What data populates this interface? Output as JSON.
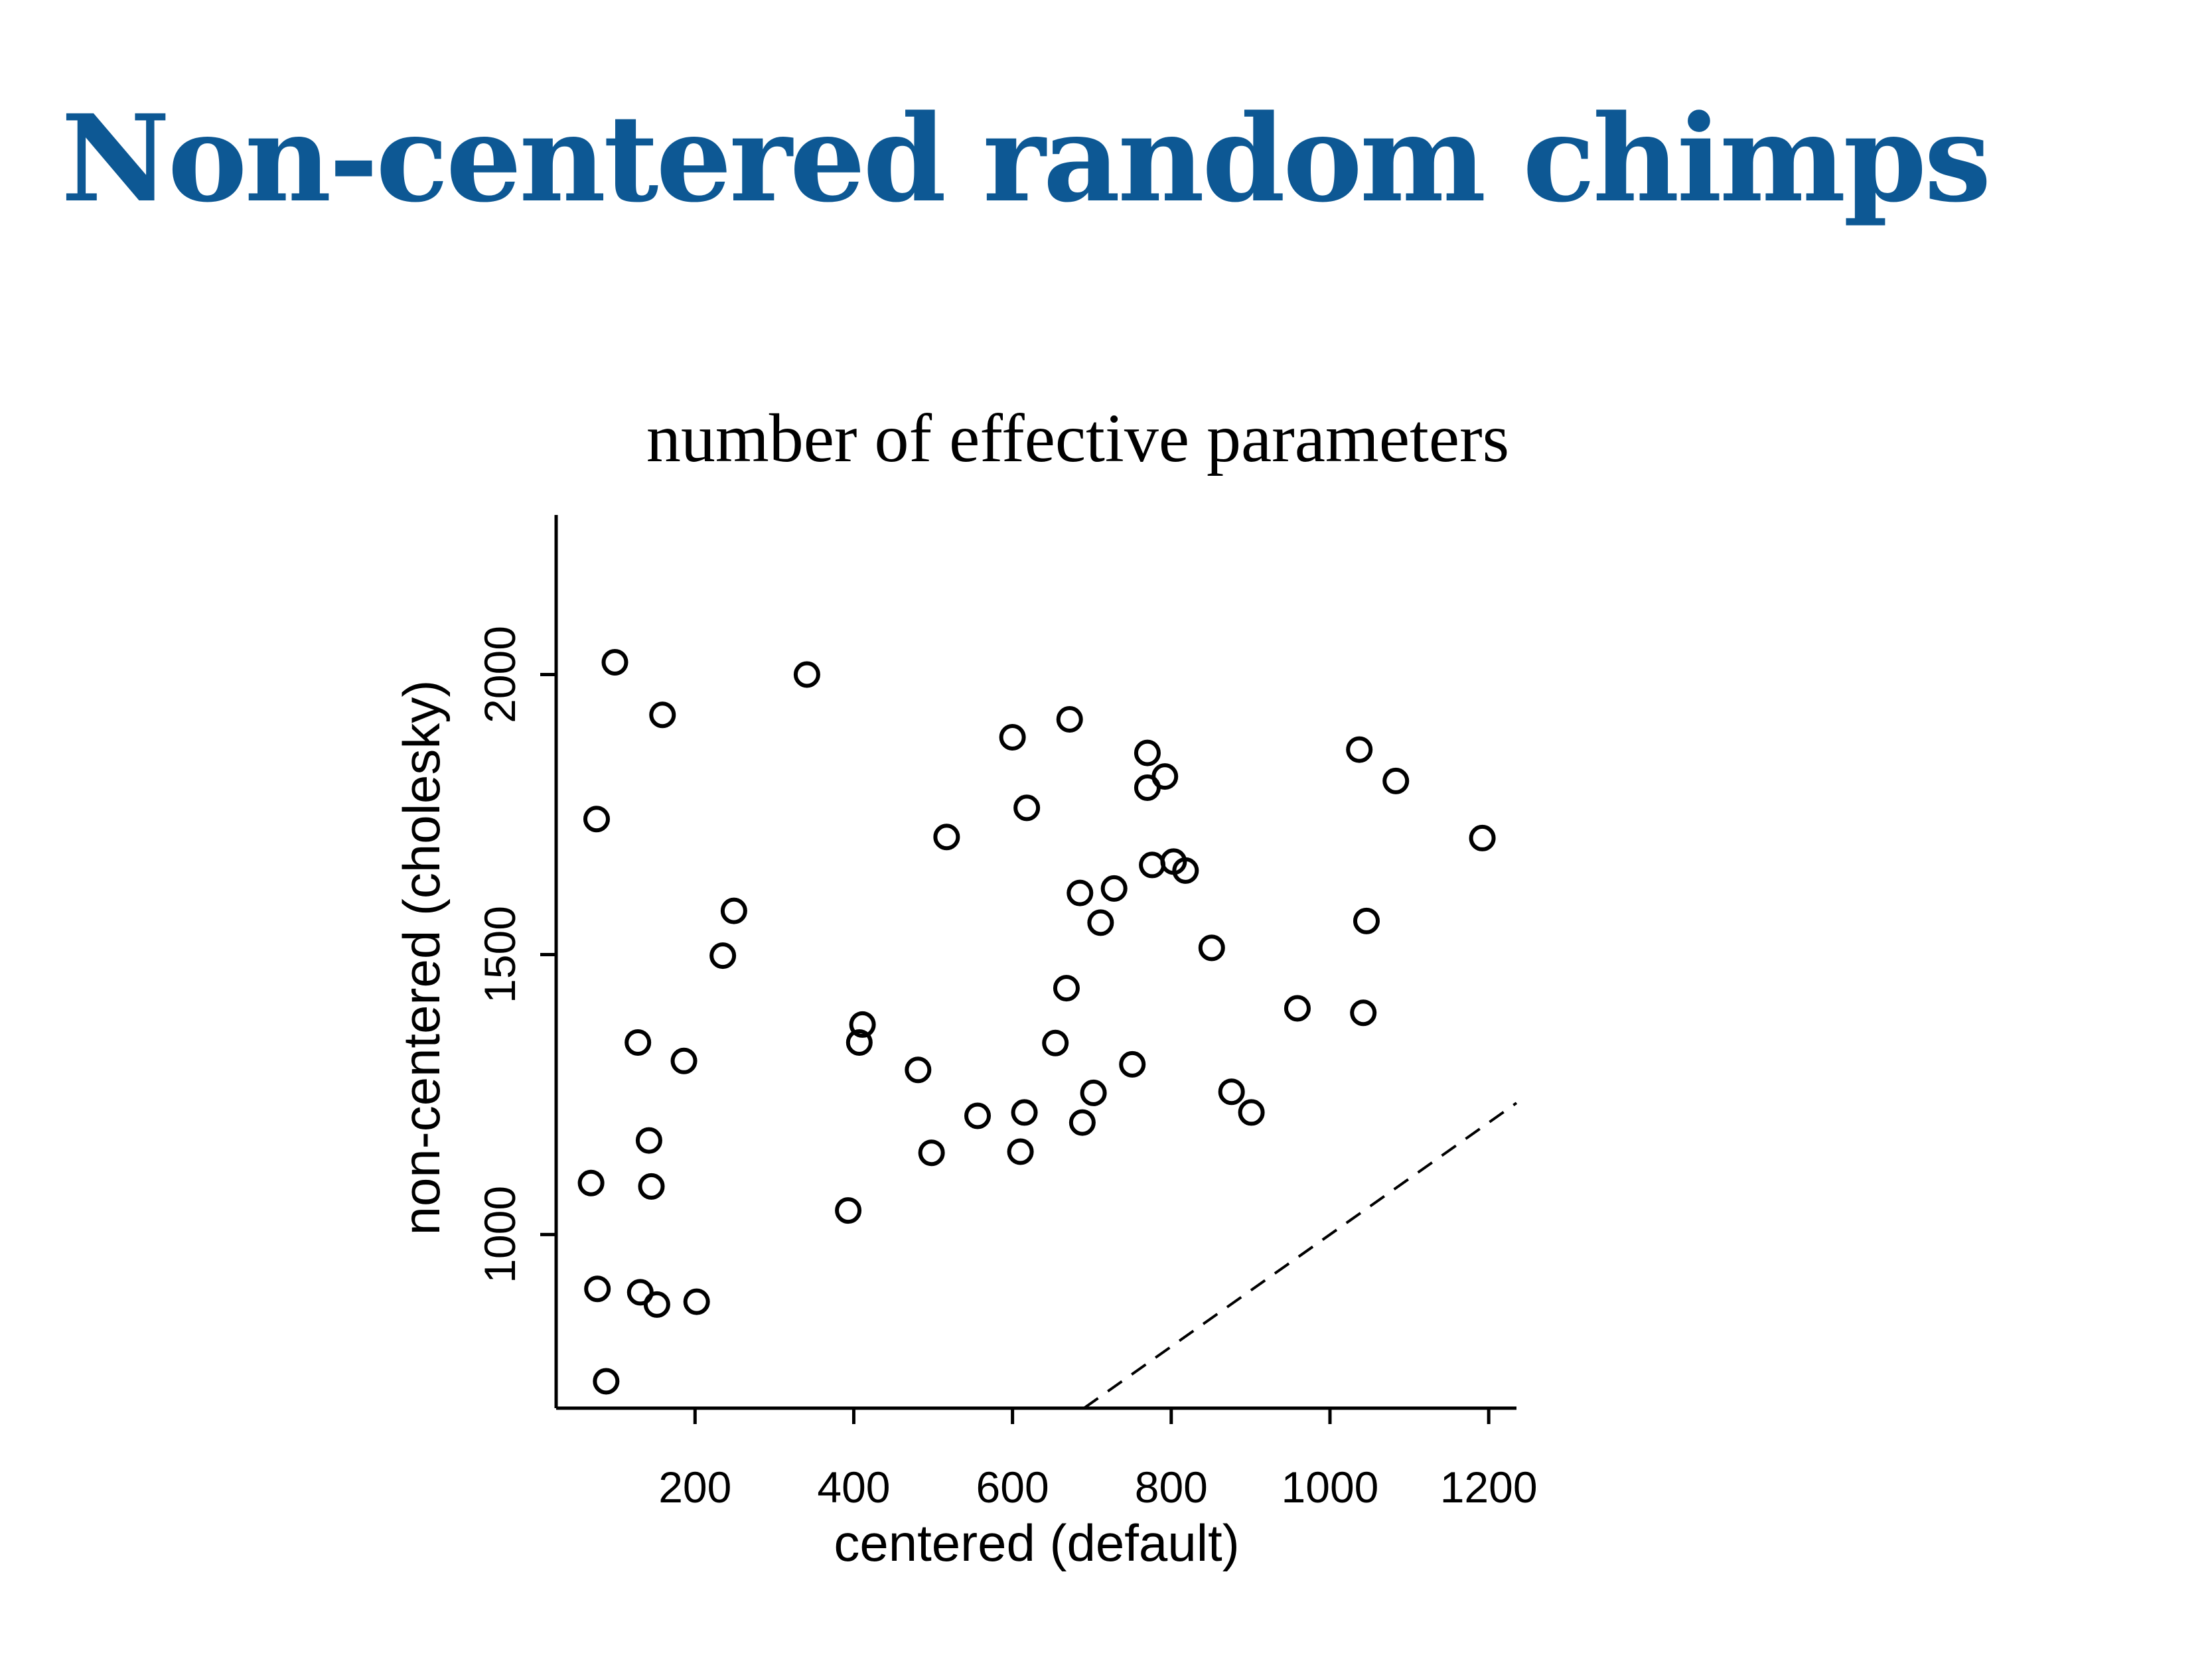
{
  "slide": {
    "title": "Non-centered random chimps"
  },
  "chart_data": {
    "type": "scatter",
    "title": "number of effective parameters",
    "xlabel": "centered (default)",
    "ylabel": "non-centered (cholesky)",
    "xlim": [
      25,
      1235
    ],
    "ylim": [
      690,
      2285
    ],
    "xticks": [
      200,
      400,
      600,
      800,
      1000,
      1200
    ],
    "yticks": [
      1000,
      1500,
      2000
    ],
    "grid": false,
    "marker": "open-circle",
    "reference_line": {
      "style": "dashed",
      "slope": 1,
      "intercept": 0
    },
    "points": [
      [
        99,
        2022
      ],
      [
        341,
        2000
      ],
      [
        159,
        1928
      ],
      [
        672,
        1920
      ],
      [
        600,
        1888
      ],
      [
        770,
        1860
      ],
      [
        1037,
        1866
      ],
      [
        1083,
        1810
      ],
      [
        792,
        1818
      ],
      [
        770,
        1798
      ],
      [
        76,
        1742
      ],
      [
        618,
        1762
      ],
      [
        517,
        1710
      ],
      [
        1192,
        1708
      ],
      [
        776,
        1660
      ],
      [
        803,
        1666
      ],
      [
        818,
        1650
      ],
      [
        728,
        1618
      ],
      [
        685,
        1610
      ],
      [
        249,
        1578
      ],
      [
        711,
        1557
      ],
      [
        1046,
        1560
      ],
      [
        235,
        1498
      ],
      [
        851,
        1512
      ],
      [
        668,
        1440
      ],
      [
        411,
        1375
      ],
      [
        407,
        1343
      ],
      [
        959,
        1404
      ],
      [
        1042,
        1396
      ],
      [
        128,
        1343
      ],
      [
        654,
        1342
      ],
      [
        186,
        1310
      ],
      [
        751,
        1304
      ],
      [
        481,
        1294
      ],
      [
        702,
        1253
      ],
      [
        876,
        1255
      ],
      [
        901,
        1218
      ],
      [
        556,
        1212
      ],
      [
        615,
        1218
      ],
      [
        688,
        1200
      ],
      [
        142,
        1168
      ],
      [
        498,
        1146
      ],
      [
        610,
        1148
      ],
      [
        145,
        1086
      ],
      [
        69,
        1092
      ],
      [
        393,
        1043
      ],
      [
        77,
        903
      ],
      [
        131,
        897
      ],
      [
        152,
        875
      ],
      [
        202,
        880
      ],
      [
        88,
        738
      ]
    ]
  }
}
